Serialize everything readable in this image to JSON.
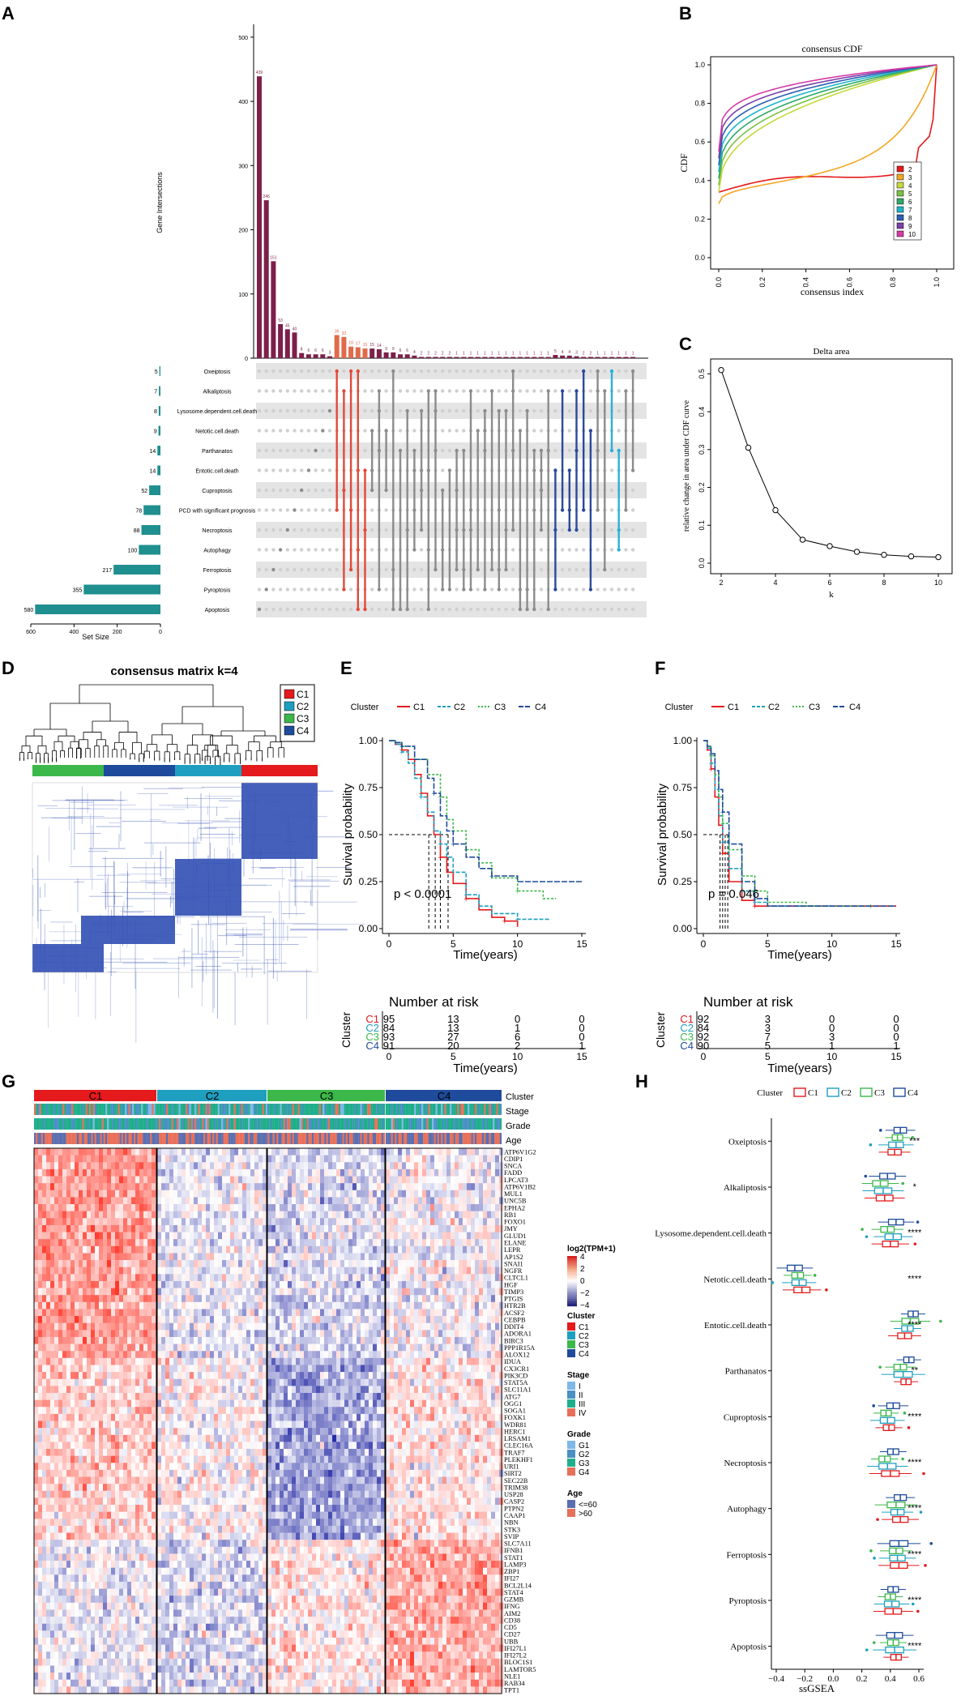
{
  "panels": {
    "A": {
      "label": "A",
      "ylabel": "Gene Intersections",
      "xlabel": "Set Size",
      "yticks": [
        "0",
        "100",
        "200",
        "300",
        "400",
        "500"
      ],
      "size_ticks": [
        "600",
        "400",
        "200",
        "0"
      ],
      "bar_values": [
        439,
        246,
        151,
        53,
        45,
        40,
        8,
        6,
        6,
        6,
        3,
        36,
        33,
        18,
        17,
        15,
        15,
        14,
        9,
        9,
        6,
        6,
        4,
        2,
        2,
        2,
        2,
        2,
        1,
        1,
        1,
        1,
        1,
        1,
        1,
        1,
        1,
        1,
        1,
        1,
        1,
        1,
        5,
        4,
        4,
        3,
        2,
        2,
        1,
        1,
        1,
        1,
        1,
        1
      ],
      "sets": [
        {
          "name": "Oxeiptosis",
          "size": "5",
          "v": 5
        },
        {
          "name": "Alkaliptosis",
          "size": "7",
          "v": 7
        },
        {
          "name": "Lysosome.dependent.cell.death",
          "size": "8",
          "v": 8
        },
        {
          "name": "Netotic.cell.death",
          "size": "9",
          "v": 9
        },
        {
          "name": "Parthanatos",
          "size": "14",
          "v": 14
        },
        {
          "name": "Entotic.cell.death",
          "size": "14",
          "v": 14
        },
        {
          "name": "Cuproptosis",
          "size": "52",
          "v": 52
        },
        {
          "name": "PCD with significant prognosis",
          "size": "78",
          "v": 78
        },
        {
          "name": "Necroptosis",
          "size": "88",
          "v": 88
        },
        {
          "name": "Autophagy",
          "size": "100",
          "v": 100
        },
        {
          "name": "Ferroptosis",
          "size": "217",
          "v": 217
        },
        {
          "name": "Pyroptosis",
          "size": "355",
          "v": 355
        },
        {
          "name": "Apoptosis",
          "size": "580",
          "v": 580
        }
      ]
    },
    "B": {
      "label": "B",
      "title": "consensus CDF",
      "xlabel": "consensus index",
      "ylabel": "CDF",
      "ticks": [
        "0.0",
        "0.2",
        "0.4",
        "0.6",
        "0.8",
        "1.0"
      ],
      "legend": [
        {
          "k": "2",
          "color": "#e41a1c"
        },
        {
          "k": "3",
          "color": "#f5a623"
        },
        {
          "k": "4",
          "color": "#c5d93a"
        },
        {
          "k": "5",
          "color": "#7ac143"
        },
        {
          "k": "6",
          "color": "#2ea86a"
        },
        {
          "k": "7",
          "color": "#1fb5c9"
        },
        {
          "k": "8",
          "color": "#2b5fb5"
        },
        {
          "k": "9",
          "color": "#7b3fa8"
        },
        {
          "k": "10",
          "color": "#d63aa6"
        }
      ]
    },
    "C": {
      "label": "C",
      "title": "Delta area",
      "xlabel": "k",
      "ylabel": "relative change in area under CDF curve",
      "xticks": [
        "2",
        "4",
        "6",
        "8",
        "10"
      ],
      "yticks": [
        "0.0",
        "0.1",
        "0.2",
        "0.3",
        "0.4",
        "0.5"
      ],
      "k": [
        2,
        3,
        4,
        5,
        6,
        7,
        8,
        9,
        10
      ],
      "delta": [
        0.51,
        0.305,
        0.14,
        0.062,
        0.045,
        0.03,
        0.022,
        0.018,
        0.016
      ]
    },
    "D": {
      "label": "D",
      "title": "consensus matrix k=4",
      "legend": [
        {
          "name": "C1",
          "color": "#e41a1c"
        },
        {
          "name": "C2",
          "color": "#1f9fbf"
        },
        {
          "name": "C3",
          "color": "#3cb84a"
        },
        {
          "name": "C4",
          "color": "#1e4b9c"
        }
      ]
    },
    "E": {
      "label": "E",
      "legend_title": "Cluster",
      "clusters": [
        "C1",
        "C2",
        "C3",
        "C4"
      ],
      "colors": [
        "#e41a1c",
        "#1f9fbf",
        "#3cb84a",
        "#1e4b9c"
      ],
      "pvalue": "p < 0.0001",
      "ylabel": "Survival probability",
      "xlabel": "Time(years)",
      "xticks": [
        "0",
        "5",
        "10",
        "15"
      ],
      "yticks": [
        "0.00",
        "0.25",
        "0.50",
        "0.75",
        "1.00"
      ],
      "risk_title": "Number at risk",
      "risk_ylabel": "Cluster",
      "risk": [
        [
          "95",
          "13",
          "0",
          "0"
        ],
        [
          "84",
          "13",
          "1",
          "0"
        ],
        [
          "93",
          "27",
          "6",
          "0"
        ],
        [
          "91",
          "20",
          "2",
          "1"
        ]
      ]
    },
    "F": {
      "label": "F",
      "legend_title": "Cluster",
      "clusters": [
        "C1",
        "C2",
        "C3",
        "C4"
      ],
      "colors": [
        "#e41a1c",
        "#1f9fbf",
        "#3cb84a",
        "#1e4b9c"
      ],
      "pvalue": "p = 0.046",
      "ylabel": "Survival probability",
      "xlabel": "Time(years)",
      "xticks": [
        "0",
        "5",
        "10",
        "15"
      ],
      "yticks": [
        "0.00",
        "0.25",
        "0.50",
        "0.75",
        "1.00"
      ],
      "risk_title": "Number at risk",
      "risk_ylabel": "Cluster",
      "risk": [
        [
          "92",
          "3",
          "0",
          "0"
        ],
        [
          "84",
          "3",
          "0",
          "0"
        ],
        [
          "92",
          "7",
          "3",
          "0"
        ],
        [
          "90",
          "5",
          "1",
          "1"
        ]
      ]
    },
    "G": {
      "label": "G",
      "clusters": [
        "C1",
        "C2",
        "C3",
        "C4"
      ],
      "annotations": [
        "Cluster",
        "Stage",
        "Grade",
        "Age"
      ],
      "genes": [
        "ATP6V1G2",
        "CDIP1",
        "SNCA",
        "FADD",
        "LPCAT3",
        "ATP6V1B2",
        "MUL1",
        "UNC5B",
        "EPHA2",
        "RB1",
        "FOXO1",
        "JMY",
        "GLUD1",
        "ELANE",
        "LEPR",
        "AP1S2",
        "SNAI1",
        "NGFR",
        "CLTCL1",
        "HGF",
        "TIMP3",
        "PTGIS",
        "HTR2B",
        "ACSF2",
        "CEBPB",
        "DDIT4",
        "ADORA1",
        "BIRC3",
        "PPP1R15A",
        "ALOX12",
        "IDUA",
        "CX3CR1",
        "PIK3CD",
        "STAT5A",
        "SLC11A1",
        "ATG7",
        "OGG1",
        "SOGA1",
        "FOXK1",
        "WDR81",
        "HERC1",
        "LRSAM1",
        "CLEC16A",
        "TRAF7",
        "PLEKHF1",
        "URI1",
        "SIRT2",
        "SEC22B",
        "TRIM38",
        "USP28",
        "CASP2",
        "PTPN2",
        "CAAP1",
        "NBN",
        "STK3",
        "SVIP",
        "SLC7A11",
        "IFNB1",
        "STAT1",
        "LAMP3",
        "ZBP1",
        "IFI27",
        "BCL2L14",
        "STAT4",
        "GZMB",
        "IFNG",
        "AIM2",
        "CD38",
        "CD5",
        "CD27",
        "UBB",
        "IFI27L1",
        "IFI27L2",
        "BLOC1S1",
        "LAMTOR5",
        "NLE1",
        "RAB34",
        "TPT1"
      ],
      "legend": {
        "scale_title": "log2(TPM+1)",
        "scale_ticks": [
          "4",
          "2",
          "0",
          "−2",
          "−4"
        ],
        "cluster_title": "Cluster",
        "cluster_items": [
          {
            "name": "C1",
            "color": "#e41a1c"
          },
          {
            "name": "C2",
            "color": "#1f9fbf"
          },
          {
            "name": "C3",
            "color": "#3cb84a"
          },
          {
            "name": "C4",
            "color": "#1e4b9c"
          }
        ],
        "stage_title": "Stage",
        "stage_items": [
          {
            "name": "I",
            "color": "#7fb7e8"
          },
          {
            "name": "II",
            "color": "#4a8fc6"
          },
          {
            "name": "III",
            "color": "#1fae8a"
          },
          {
            "name": "IV",
            "color": "#e8705a"
          }
        ],
        "grade_title": "Grade",
        "grade_items": [
          {
            "name": "G1",
            "color": "#7fb7e8"
          },
          {
            "name": "G2",
            "color": "#4a8fc6"
          },
          {
            "name": "G3",
            "color": "#1fae8a"
          },
          {
            "name": "G4",
            "color": "#e8705a"
          }
        ],
        "age_title": "Age",
        "age_items": [
          {
            "name": "<=60",
            "color": "#5b6fb0"
          },
          {
            "name": ">60",
            "color": "#e8705a"
          }
        ]
      }
    },
    "H": {
      "label": "H",
      "legend_title": "Cluster",
      "clusters": [
        "C1",
        "C2",
        "C3",
        "C4"
      ],
      "colors": [
        "#e41a1c",
        "#1f9fbf",
        "#3cb84a",
        "#1e4b9c"
      ],
      "xlabel": "ssGSEA",
      "xticks": [
        "−0.4",
        "−0.2",
        "0.0",
        "0.2",
        "0.4",
        "0.6"
      ],
      "rows": [
        {
          "name": "Oxeiptosis",
          "sig": "***",
          "meds": [
            0.43,
            0.44,
            0.45,
            0.47
          ]
        },
        {
          "name": "Alkaliptosis",
          "sig": "*",
          "meds": [
            0.36,
            0.35,
            0.33,
            0.38
          ]
        },
        {
          "name": "Lysosome.dependent.cell.death",
          "sig": "****",
          "meds": [
            0.4,
            0.42,
            0.38,
            0.44
          ]
        },
        {
          "name": "Netotic.cell.death",
          "sig": "****",
          "meds": [
            -0.22,
            -0.24,
            -0.25,
            -0.27
          ]
        },
        {
          "name": "Entotic.cell.death",
          "sig": "****",
          "meds": [
            0.5,
            0.52,
            0.54,
            0.56
          ]
        },
        {
          "name": "Parthanatos",
          "sig": "**",
          "meds": [
            0.51,
            0.49,
            0.47,
            0.53
          ]
        },
        {
          "name": "Cuproptosis",
          "sig": "****",
          "meds": [
            0.39,
            0.38,
            0.37,
            0.42
          ]
        },
        {
          "name": "Necroptosis",
          "sig": "****",
          "meds": [
            0.4,
            0.38,
            0.36,
            0.42
          ]
        },
        {
          "name": "Autophagy",
          "sig": "****",
          "meds": [
            0.47,
            0.45,
            0.44,
            0.47
          ]
        },
        {
          "name": "Ferroptosis",
          "sig": "****",
          "meds": [
            0.46,
            0.45,
            0.44,
            0.46
          ]
        },
        {
          "name": "Pyroptosis",
          "sig": "****",
          "meds": [
            0.42,
            0.41,
            0.4,
            0.42
          ]
        },
        {
          "name": "Apoptosis",
          "sig": "****",
          "meds": [
            0.44,
            0.43,
            0.42,
            0.43
          ]
        }
      ]
    }
  }
}
